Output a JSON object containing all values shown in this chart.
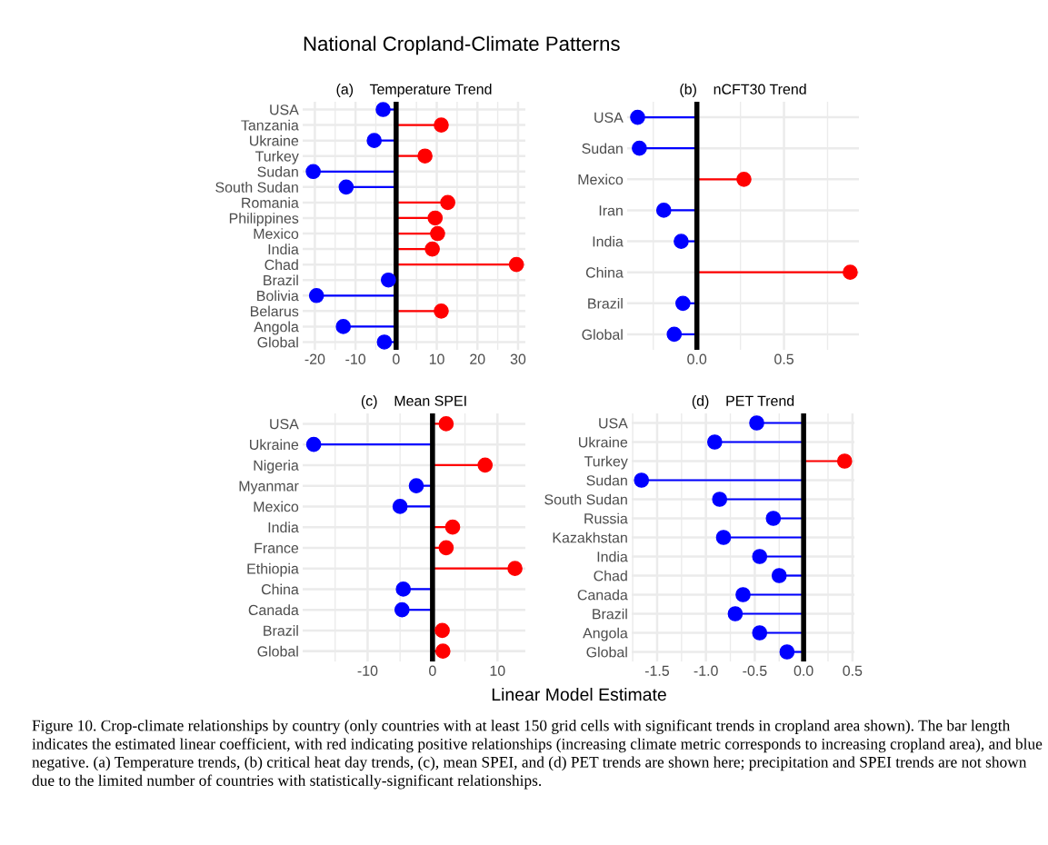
{
  "chart_data": [
    {
      "type": "lollipop",
      "orientation": "horizontal",
      "title": "(a)    Temperature Trend",
      "categories": [
        "USA",
        "Tanzania",
        "Ukraine",
        "Turkey",
        "Sudan",
        "South Sudan",
        "Romania",
        "Philippines",
        "Mexico",
        "India",
        "Chad",
        "Brazil",
        "Bolivia",
        "Belarus",
        "Angola",
        "Global"
      ],
      "values": [
        -3.2,
        11.1,
        -5.4,
        7.1,
        -20.4,
        -12.3,
        12.7,
        9.6,
        10.2,
        8.9,
        29.6,
        -1.9,
        -19.6,
        11.1,
        -13.0,
        -2.9
      ],
      "colors": [
        "#0000ff",
        "#ff0000",
        "#0000ff",
        "#ff0000",
        "#0000ff",
        "#0000ff",
        "#ff0000",
        "#ff0000",
        "#ff0000",
        "#ff0000",
        "#ff0000",
        "#0000ff",
        "#0000ff",
        "#ff0000",
        "#0000ff",
        "#0000ff"
      ],
      "xlim": [
        -23,
        31.8
      ],
      "xticks": [
        -20,
        -10,
        0,
        10,
        20,
        30
      ],
      "grid": true,
      "marker": "circle",
      "ref_lines": [
        {
          "axis": "x",
          "value": 0,
          "color": "#000000"
        }
      ],
      "annotations": [
        "National Cropland-Climate Patterns",
        "Linear Model Estimate",
        "Figure 10. Crop-climate relationships by country (only countries with at least 150 grid cells with significant trends in cropland area shown). The bar length indicates the estimated linear coefficient, with red indicating positive relationships (increasing climate metric corresponds to increasing cropland area), and blue negative. (a) Temperature trends, (b) critical heat day trends, (c), mean SPEI, and (d) PET trends are shown here; precipitation and SPEI trends are not shown due to the limited number of countries with statistically-significant relationships."
      ]
    },
    {
      "type": "lollipop",
      "orientation": "horizontal",
      "title": "(b)    nCFT30 Trend",
      "categories": [
        "USA",
        "Sudan",
        "Mexico",
        "Iran",
        "India",
        "China",
        "Brazil",
        "Global"
      ],
      "values": [
        -0.34,
        -0.33,
        0.27,
        -0.19,
        -0.09,
        0.88,
        -0.08,
        -0.13
      ],
      "colors": [
        "#0000ff",
        "#0000ff",
        "#ff0000",
        "#0000ff",
        "#0000ff",
        "#ff0000",
        "#0000ff",
        "#0000ff"
      ],
      "xlim": [
        -0.4,
        0.93
      ],
      "xticks": [
        {
          "value": 0,
          "label": "0.0"
        },
        0.5
      ],
      "grid": true,
      "marker": "circle",
      "ref_lines": [
        {
          "axis": "x",
          "value": 0,
          "color": "#000000"
        }
      ]
    },
    {
      "type": "lollipop",
      "orientation": "horizontal",
      "title": "(c)    Mean SPEI",
      "categories": [
        "USA",
        "Ukraine",
        "Nigeria",
        "Myanmar",
        "Mexico",
        "India",
        "France",
        "Ethiopia",
        "China",
        "Canada",
        "Brazil",
        "Global"
      ],
      "values": [
        2.1,
        -18.3,
        8.1,
        -2.5,
        -5.0,
        3.1,
        2.1,
        12.7,
        -4.5,
        -4.7,
        1.5,
        1.6
      ],
      "colors": [
        "#ff0000",
        "#0000ff",
        "#ff0000",
        "#0000ff",
        "#0000ff",
        "#ff0000",
        "#ff0000",
        "#ff0000",
        "#0000ff",
        "#0000ff",
        "#ff0000",
        "#ff0000"
      ],
      "xlim": [
        -20,
        14.3
      ],
      "xticks": [
        -10,
        0,
        10
      ],
      "grid": true,
      "marker": "circle",
      "ref_lines": [
        {
          "axis": "x",
          "value": 0,
          "color": "#000000"
        }
      ]
    },
    {
      "type": "lollipop",
      "orientation": "horizontal",
      "title": "(d)    PET Trend",
      "categories": [
        "USA",
        "Ukraine",
        "Turkey",
        "Sudan",
        "South Sudan",
        "Russia",
        "Kazakhstan",
        "India",
        "Chad",
        "Canada",
        "Brazil",
        "Angola",
        "Global"
      ],
      "values": [
        -0.48,
        -0.91,
        0.42,
        -1.66,
        -0.86,
        -0.31,
        -0.82,
        -0.45,
        -0.25,
        -0.62,
        -0.7,
        -0.45,
        -0.17
      ],
      "colors": [
        "#0000ff",
        "#0000ff",
        "#ff0000",
        "#0000ff",
        "#0000ff",
        "#0000ff",
        "#0000ff",
        "#0000ff",
        "#0000ff",
        "#0000ff",
        "#0000ff",
        "#0000ff",
        "#0000ff"
      ],
      "xlim": [
        -1.76,
        0.52
      ],
      "xticks": [
        {
          "value": -1.5,
          "label": "-1.5"
        },
        {
          "value": -1,
          "label": "-1.0"
        },
        {
          "value": -0.5,
          "label": "-0.5"
        },
        {
          "value": 0,
          "label": "0.0"
        },
        0.5
      ],
      "grid": true,
      "marker": "circle",
      "ref_lines": [
        {
          "axis": "x",
          "value": 0,
          "color": "#000000"
        }
      ]
    }
  ]
}
